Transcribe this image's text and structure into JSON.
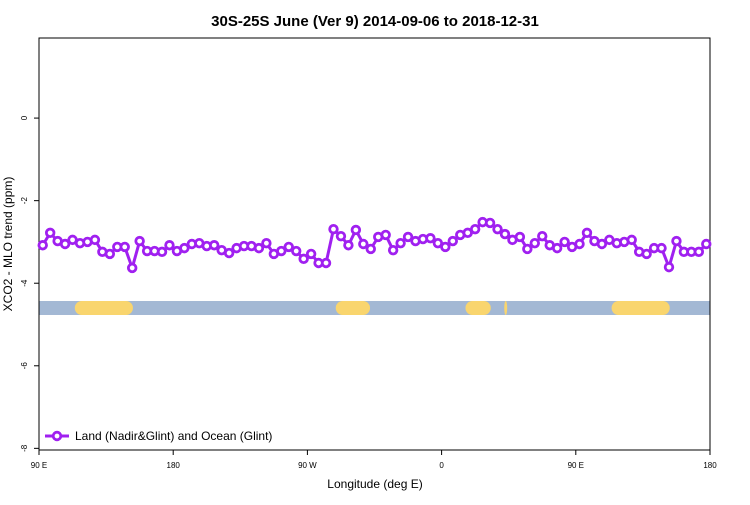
{
  "chart_data": {
    "type": "line",
    "title": "30S-25S June (Ver 9)   2014-09-06 to 2018-12-31",
    "x_label": "Longitude (deg E)",
    "y_label": "XCO2 - MLO trend (ppm)",
    "x": [
      92.5,
      97.5,
      102.5,
      107.5,
      112.5,
      117.5,
      122.5,
      127.5,
      132.5,
      137.5,
      142.5,
      147.5,
      152.5,
      157.5,
      162.5,
      167.5,
      172.5,
      177.5,
      182.5,
      187.5,
      192.5,
      197.5,
      202.5,
      207.5,
      212.5,
      217.5,
      222.5,
      227.5,
      232.5,
      237.5,
      242.5,
      247.5,
      252.5,
      257.5,
      262.5,
      267.5,
      272.5,
      277.5,
      282.5,
      287.5,
      292.5,
      297.5,
      302.5,
      307.5,
      312.5,
      317.5,
      322.5,
      327.5,
      332.5,
      337.5,
      342.5,
      347.5,
      352.5,
      357.5,
      362.5,
      367.5,
      372.5,
      377.5,
      382.5,
      387.5,
      392.5,
      397.5,
      402.5,
      407.5,
      412.5,
      417.5,
      422.5,
      427.5,
      432.5,
      437.5,
      442.5,
      447.5,
      452.5,
      457.5,
      462.5,
      467.5,
      472.5,
      477.5,
      482.5,
      487.5,
      492.5,
      497.5,
      502.5,
      507.5,
      512.5,
      517.5,
      522.5,
      527.5,
      532.5,
      537.5
    ],
    "series": [
      {
        "name": "Land (Nadir&Glint) and Ocean (Glint)",
        "color": "#a020f0",
        "values": [
          -3.08,
          -2.78,
          -2.98,
          -3.05,
          -2.95,
          -3.03,
          -3.0,
          -2.95,
          -3.24,
          -3.29,
          -3.12,
          -3.12,
          -3.63,
          -2.98,
          -3.22,
          -3.22,
          -3.24,
          -3.08,
          -3.22,
          -3.15,
          -3.05,
          -3.03,
          -3.1,
          -3.08,
          -3.2,
          -3.27,
          -3.15,
          -3.1,
          -3.1,
          -3.15,
          -3.03,
          -3.29,
          -3.22,
          -3.12,
          -3.22,
          -3.41,
          -3.29,
          -3.51,
          -3.51,
          -2.69,
          -2.86,
          -3.08,
          -2.71,
          -3.05,
          -3.17,
          -2.88,
          -2.83,
          -3.2,
          -3.03,
          -2.88,
          -2.98,
          -2.93,
          -2.91,
          -3.03,
          -3.12,
          -2.98,
          -2.83,
          -2.78,
          -2.69,
          -2.52,
          -2.54,
          -2.69,
          -2.81,
          -2.95,
          -2.88,
          -3.17,
          -3.03,
          -2.86,
          -3.08,
          -3.15,
          -3.0,
          -3.12,
          -3.05,
          -2.78,
          -2.98,
          -3.05,
          -2.95,
          -3.03,
          -3.0,
          -2.95,
          -3.24,
          -3.29,
          -3.15,
          -3.15,
          -3.61,
          -2.98,
          -3.24,
          -3.24,
          -3.24,
          -3.05
        ]
      }
    ],
    "band_value": -4.6,
    "band_color": "#a3b8d4",
    "land_color": "#f9d56e",
    "land_ranges": [
      [
        114,
        153
      ],
      [
        289,
        312
      ],
      [
        376,
        393
      ],
      [
        402,
        404
      ],
      [
        474,
        513
      ]
    ],
    "xlim": [
      90,
      540
    ],
    "xticks": [
      {
        "value": 90,
        "label": "90 E"
      },
      {
        "value": 180,
        "label": "180"
      },
      {
        "value": 270,
        "label": "90 W"
      },
      {
        "value": 360,
        "label": "0"
      },
      {
        "value": 450,
        "label": "90 E"
      },
      {
        "value": 540,
        "label": "180"
      }
    ],
    "ylim": [
      -8.04,
      1.94
    ],
    "yticks": [
      0,
      -2,
      -4,
      -6,
      -8
    ],
    "legend": "bottom-left"
  }
}
